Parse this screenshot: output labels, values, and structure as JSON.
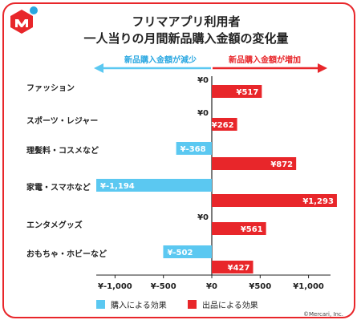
{
  "title_line1": "フリマアプリ利用者",
  "title_line2": "一人当りの月間新品購入金額の変化量",
  "direction_left": "新品購入金額が減少",
  "direction_right": "新品購入金額が増加",
  "copyright": "©Mercari, Inc.",
  "colors": {
    "accent": "#e8262a",
    "buy": "#5bc8f1",
    "sell": "#e8262a",
    "logo_blue": "#29a7e1"
  },
  "logo": {
    "name": "mercari-logo"
  },
  "chart_data": {
    "type": "bar",
    "orientation": "horizontal",
    "categories": [
      "ファッション",
      "スポーツ・レジャー",
      "理髪料・コスメなど",
      "家電・スマホなど",
      "エンタメグッズ",
      "おもちゃ・ホビーなど"
    ],
    "series": [
      {
        "name": "購入による効果",
        "values": [
          0,
          0,
          -368,
          -1194,
          0,
          -502
        ],
        "labels": [
          "¥0",
          "¥0",
          "¥-368",
          "¥-1,194",
          "¥0",
          "¥-502"
        ]
      },
      {
        "name": "出品による効果",
        "values": [
          517,
          262,
          872,
          1293,
          561,
          427
        ],
        "labels": [
          "¥517",
          "¥262",
          "¥872",
          "¥1,293",
          "¥561",
          "¥427"
        ]
      }
    ],
    "xlim": [
      -1194,
      1293
    ],
    "ticks": [
      -1000,
      -500,
      0,
      500,
      1000
    ],
    "tick_labels": [
      "¥-1,000",
      "¥-500",
      "¥0",
      "¥500",
      "¥1,000"
    ],
    "legend": "bottom-left"
  }
}
